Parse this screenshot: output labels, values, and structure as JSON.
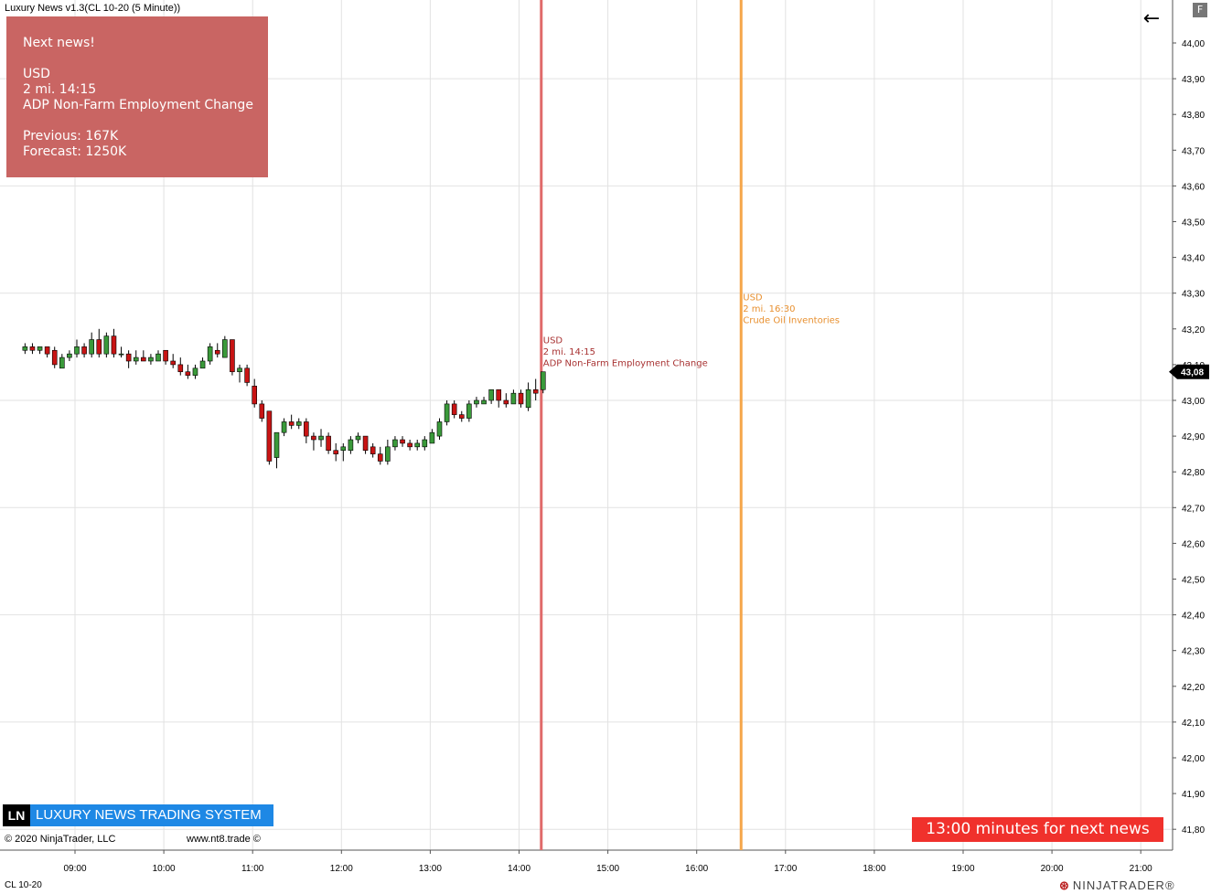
{
  "window": {
    "title": "Luxury News v1.3(CL 10-20 (5 Minute))"
  },
  "news_box": {
    "heading": "Next news!",
    "currency": "USD",
    "datetime": "2 mi. 14:15",
    "event": "ADP Non-Farm Employment Change",
    "previous": "Previous: 167K",
    "forecast": "Forecast: 1250K",
    "color": "#c96563"
  },
  "toolbar": {
    "back_icon": "arrow-left-icon",
    "f_label": "F"
  },
  "chart_data": {
    "type": "candlestick",
    "instrument": "CL 10-20",
    "current_price": "43,08",
    "y_ticks": [
      "44,00",
      "43,90",
      "43,80",
      "43,70",
      "43,60",
      "43,50",
      "43,40",
      "43,30",
      "43,20",
      "43,10",
      "43,00",
      "42,90",
      "42,80",
      "42,70",
      "42,60",
      "42,50",
      "42,40",
      "42,30",
      "42,20",
      "42,10",
      "42,00",
      "41,90",
      "41,80"
    ],
    "ylim": [
      41.765,
      44.035
    ],
    "x_ticks": [
      "09:00",
      "10:00",
      "11:00",
      "12:00",
      "13:00",
      "14:00",
      "15:00",
      "16:00",
      "17:00",
      "18:00",
      "19:00",
      "20:00",
      "21:00"
    ],
    "x_start_minutes": 480,
    "x_end_minutes": 1290,
    "grid": true,
    "up_color": "#3a9a3a",
    "down_color": "#c81414",
    "candles": [
      {
        "t": "08:25",
        "o": 43.14,
        "h": 43.16,
        "l": 43.13,
        "c": 43.15
      },
      {
        "t": "08:30",
        "o": 43.15,
        "h": 43.16,
        "l": 43.13,
        "c": 43.14
      },
      {
        "t": "08:35",
        "o": 43.14,
        "h": 43.15,
        "l": 43.13,
        "c": 43.15
      },
      {
        "t": "08:40",
        "o": 43.15,
        "h": 43.15,
        "l": 43.12,
        "c": 43.13
      },
      {
        "t": "08:45",
        "o": 43.14,
        "h": 43.15,
        "l": 43.09,
        "c": 43.1
      },
      {
        "t": "08:50",
        "o": 43.09,
        "h": 43.13,
        "l": 43.09,
        "c": 43.12
      },
      {
        "t": "08:55",
        "o": 43.12,
        "h": 43.14,
        "l": 43.11,
        "c": 43.13
      },
      {
        "t": "09:00",
        "o": 43.13,
        "h": 43.17,
        "l": 43.12,
        "c": 43.15
      },
      {
        "t": "09:05",
        "o": 43.15,
        "h": 43.16,
        "l": 43.12,
        "c": 43.13
      },
      {
        "t": "09:10",
        "o": 43.13,
        "h": 43.19,
        "l": 43.12,
        "c": 43.17
      },
      {
        "t": "09:15",
        "o": 43.17,
        "h": 43.2,
        "l": 43.12,
        "c": 43.13
      },
      {
        "t": "09:20",
        "o": 43.13,
        "h": 43.19,
        "l": 43.12,
        "c": 43.18
      },
      {
        "t": "09:25",
        "o": 43.18,
        "h": 43.2,
        "l": 43.12,
        "c": 43.13
      },
      {
        "t": "09:30",
        "o": 43.13,
        "h": 43.15,
        "l": 43.12,
        "c": 43.13
      },
      {
        "t": "09:35",
        "o": 43.13,
        "h": 43.14,
        "l": 43.09,
        "c": 43.11
      },
      {
        "t": "09:40",
        "o": 43.11,
        "h": 43.14,
        "l": 43.1,
        "c": 43.12
      },
      {
        "t": "09:45",
        "o": 43.12,
        "h": 43.14,
        "l": 43.11,
        "c": 43.11
      },
      {
        "t": "09:50",
        "o": 43.11,
        "h": 43.13,
        "l": 43.1,
        "c": 43.12
      },
      {
        "t": "09:55",
        "o": 43.11,
        "h": 43.14,
        "l": 43.11,
        "c": 43.13
      },
      {
        "t": "10:00",
        "o": 43.14,
        "h": 43.14,
        "l": 43.1,
        "c": 43.11
      },
      {
        "t": "10:05",
        "o": 43.11,
        "h": 43.13,
        "l": 43.09,
        "c": 43.1
      },
      {
        "t": "10:10",
        "o": 43.1,
        "h": 43.12,
        "l": 43.07,
        "c": 43.08
      },
      {
        "t": "10:15",
        "o": 43.08,
        "h": 43.1,
        "l": 43.06,
        "c": 43.07
      },
      {
        "t": "10:20",
        "o": 43.07,
        "h": 43.1,
        "l": 43.06,
        "c": 43.09
      },
      {
        "t": "10:25",
        "o": 43.09,
        "h": 43.12,
        "l": 43.09,
        "c": 43.11
      },
      {
        "t": "10:30",
        "o": 43.11,
        "h": 43.16,
        "l": 43.1,
        "c": 43.15
      },
      {
        "t": "10:35",
        "o": 43.14,
        "h": 43.16,
        "l": 43.12,
        "c": 43.13
      },
      {
        "t": "10:40",
        "o": 43.12,
        "h": 43.18,
        "l": 43.12,
        "c": 43.17
      },
      {
        "t": "10:45",
        "o": 43.17,
        "h": 43.17,
        "l": 43.07,
        "c": 43.08
      },
      {
        "t": "10:50",
        "o": 43.08,
        "h": 43.1,
        "l": 43.05,
        "c": 43.09
      },
      {
        "t": "10:55",
        "o": 43.09,
        "h": 43.1,
        "l": 43.04,
        "c": 43.05
      },
      {
        "t": "11:00",
        "o": 43.04,
        "h": 43.06,
        "l": 42.98,
        "c": 42.99
      },
      {
        "t": "11:05",
        "o": 42.99,
        "h": 43.0,
        "l": 42.94,
        "c": 42.95
      },
      {
        "t": "11:10",
        "o": 42.97,
        "h": 42.97,
        "l": 42.82,
        "c": 42.83
      },
      {
        "t": "11:15",
        "o": 42.84,
        "h": 42.91,
        "l": 42.81,
        "c": 42.91
      },
      {
        "t": "11:20",
        "o": 42.91,
        "h": 42.95,
        "l": 42.9,
        "c": 42.94
      },
      {
        "t": "11:25",
        "o": 42.94,
        "h": 42.96,
        "l": 42.92,
        "c": 42.93
      },
      {
        "t": "11:30",
        "o": 42.93,
        "h": 42.95,
        "l": 42.92,
        "c": 42.94
      },
      {
        "t": "11:35",
        "o": 42.94,
        "h": 42.95,
        "l": 42.88,
        "c": 42.9
      },
      {
        "t": "11:40",
        "o": 42.9,
        "h": 42.91,
        "l": 42.86,
        "c": 42.89
      },
      {
        "t": "11:45",
        "o": 42.89,
        "h": 42.92,
        "l": 42.87,
        "c": 42.9
      },
      {
        "t": "11:50",
        "o": 42.9,
        "h": 42.91,
        "l": 42.85,
        "c": 42.86
      },
      {
        "t": "11:55",
        "o": 42.86,
        "h": 42.88,
        "l": 42.83,
        "c": 42.85
      },
      {
        "t": "12:00",
        "o": 42.86,
        "h": 42.88,
        "l": 42.83,
        "c": 42.87
      },
      {
        "t": "12:05",
        "o": 42.86,
        "h": 42.9,
        "l": 42.85,
        "c": 42.89
      },
      {
        "t": "12:10",
        "o": 42.89,
        "h": 42.91,
        "l": 42.88,
        "c": 42.9
      },
      {
        "t": "12:15",
        "o": 42.9,
        "h": 42.9,
        "l": 42.85,
        "c": 42.86
      },
      {
        "t": "12:20",
        "o": 42.87,
        "h": 42.88,
        "l": 42.84,
        "c": 42.85
      },
      {
        "t": "12:25",
        "o": 42.85,
        "h": 42.87,
        "l": 42.82,
        "c": 42.83
      },
      {
        "t": "12:30",
        "o": 42.83,
        "h": 42.89,
        "l": 42.82,
        "c": 42.87
      },
      {
        "t": "12:35",
        "o": 42.87,
        "h": 42.9,
        "l": 42.86,
        "c": 42.89
      },
      {
        "t": "12:40",
        "o": 42.89,
        "h": 42.9,
        "l": 42.87,
        "c": 42.88
      },
      {
        "t": "12:45",
        "o": 42.88,
        "h": 42.89,
        "l": 42.86,
        "c": 42.87
      },
      {
        "t": "12:50",
        "o": 42.87,
        "h": 42.89,
        "l": 42.86,
        "c": 42.88
      },
      {
        "t": "12:55",
        "o": 42.87,
        "h": 42.9,
        "l": 42.86,
        "c": 42.89
      },
      {
        "t": "13:00",
        "o": 42.88,
        "h": 42.92,
        "l": 42.88,
        "c": 42.91
      },
      {
        "t": "13:05",
        "o": 42.9,
        "h": 42.95,
        "l": 42.89,
        "c": 42.94
      },
      {
        "t": "13:10",
        "o": 42.94,
        "h": 43.0,
        "l": 42.93,
        "c": 42.99
      },
      {
        "t": "13:15",
        "o": 42.99,
        "h": 43.0,
        "l": 42.95,
        "c": 42.96
      },
      {
        "t": "13:20",
        "o": 42.96,
        "h": 42.97,
        "l": 42.94,
        "c": 42.95
      },
      {
        "t": "13:25",
        "o": 42.95,
        "h": 43.0,
        "l": 42.94,
        "c": 42.99
      },
      {
        "t": "13:30",
        "o": 42.99,
        "h": 43.01,
        "l": 42.98,
        "c": 43.0
      },
      {
        "t": "13:35",
        "o": 42.99,
        "h": 43.01,
        "l": 42.99,
        "c": 43.0
      },
      {
        "t": "13:40",
        "o": 43.0,
        "h": 43.03,
        "l": 42.99,
        "c": 43.03
      },
      {
        "t": "13:45",
        "o": 43.03,
        "h": 43.03,
        "l": 42.98,
        "c": 43.0
      },
      {
        "t": "13:50",
        "o": 43.0,
        "h": 43.02,
        "l": 42.98,
        "c": 42.99
      },
      {
        "t": "13:55",
        "o": 42.99,
        "h": 43.03,
        "l": 42.99,
        "c": 43.02
      },
      {
        "t": "14:00",
        "o": 43.02,
        "h": 43.03,
        "l": 42.98,
        "c": 42.99
      },
      {
        "t": "14:05",
        "o": 42.98,
        "h": 43.05,
        "l": 42.97,
        "c": 43.03
      },
      {
        "t": "14:10",
        "o": 43.03,
        "h": 43.06,
        "l": 43.0,
        "c": 43.02
      },
      {
        "t": "14:15",
        "o": 43.03,
        "h": 43.08,
        "l": 43.02,
        "c": 43.08
      }
    ],
    "news_lines": [
      {
        "time": "14:15",
        "color": "#e06a6a",
        "label_color": "#a83232",
        "currency": "USD",
        "datetime": "2 mi. 14:15",
        "event": "ADP Non-Farm Employment Change",
        "label_price": 43.16
      },
      {
        "time": "16:30",
        "color": "#f5a64a",
        "label_color": "#e89030",
        "currency": "USD",
        "datetime": "2 mi. 16:30",
        "event": "Crude Oil Inventories",
        "label_price": 43.28
      }
    ]
  },
  "branding": {
    "ln": "LN",
    "name": "LUXURY NEWS TRADING SYSTEM",
    "copyright": "© 2020 NinjaTrader, LLC",
    "website": "www.nt8.trade ©"
  },
  "countdown": "13:00 minutes for next news",
  "footer": {
    "instrument": "CL 10-20",
    "logo": "NINJATRADER",
    "logo_mark": "®"
  }
}
